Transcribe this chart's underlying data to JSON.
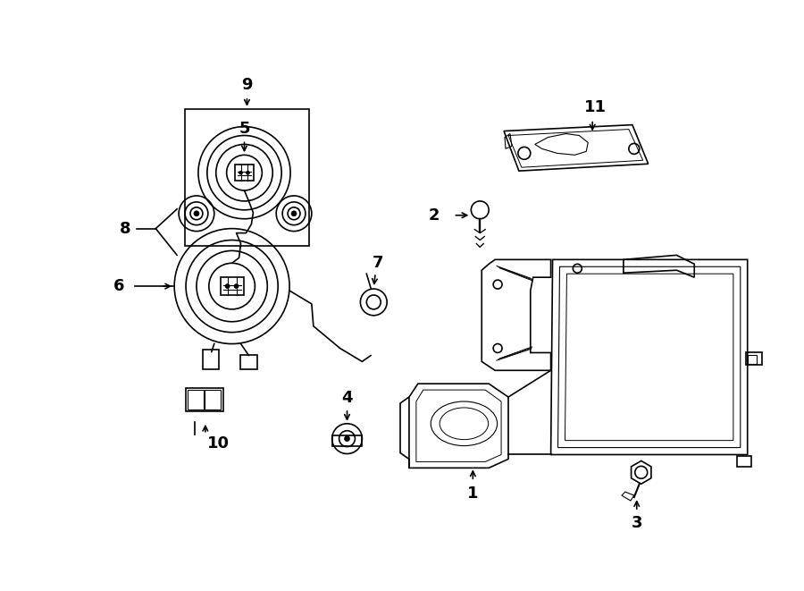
{
  "bg_color": "#ffffff",
  "line_color": "#000000",
  "fig_width": 9.0,
  "fig_height": 6.61,
  "lw": 1.2
}
